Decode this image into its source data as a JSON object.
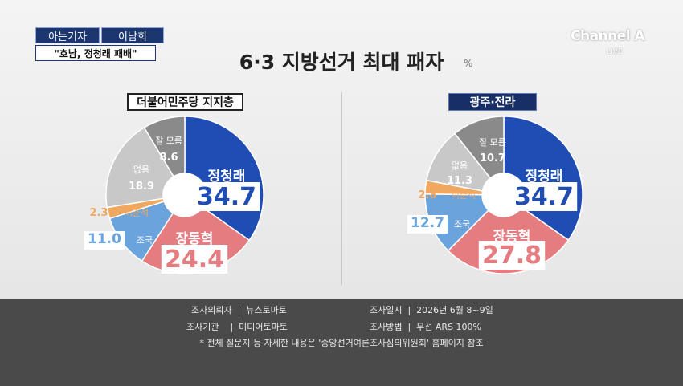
{
  "header": {
    "reporter_role": "아는기자",
    "reporter_name": "이남희",
    "headline": "\"호남, 정청래 패배\"",
    "channel": "Channel A",
    "live": "LIVE"
  },
  "title": "6·3 지방선거 최대 패자",
  "unit": "%",
  "chart_data": [
    {
      "type": "pie",
      "title": "더불어민주당 지지층",
      "categories": [
        "정청래",
        "장동혁",
        "조국",
        "이준석",
        "없음",
        "잘 모름"
      ],
      "values": [
        34.7,
        24.4,
        11.0,
        2.3,
        18.9,
        8.6
      ],
      "value_labels": [
        "34.7",
        "24.4",
        "11.0",
        "2.3",
        "18.9",
        "8.6"
      ],
      "colors": [
        "#1f4db3",
        "#e47c80",
        "#6ba3dc",
        "#f0a861",
        "#c8c8c8",
        "#8a8a8a"
      ]
    },
    {
      "type": "pie",
      "title": "광주·전라",
      "categories": [
        "정청래",
        "장동혁",
        "조국",
        "이준석",
        "없음",
        "잘 모름"
      ],
      "values": [
        34.7,
        27.8,
        12.7,
        2.8,
        11.3,
        10.7
      ],
      "value_labels": [
        "34.7",
        "27.8",
        "12.7",
        "2.8",
        "11.3",
        "10.7"
      ],
      "colors": [
        "#1f4db3",
        "#e47c80",
        "#6ba3dc",
        "#f0a861",
        "#c8c8c8",
        "#8a8a8a"
      ]
    }
  ],
  "footer": {
    "client": "조사의뢰자  |  뉴스토마토",
    "agency": "조사기관    |  미디어토마토",
    "date": "조사일시  |  2026년 6월 8~9일",
    "method": "조사방법  |  무선 ARS 100%",
    "note": "* 전체 질문지 등 자세한 내용은 '중앙선거여론조사심의위원회' 홈페이지 참조"
  }
}
